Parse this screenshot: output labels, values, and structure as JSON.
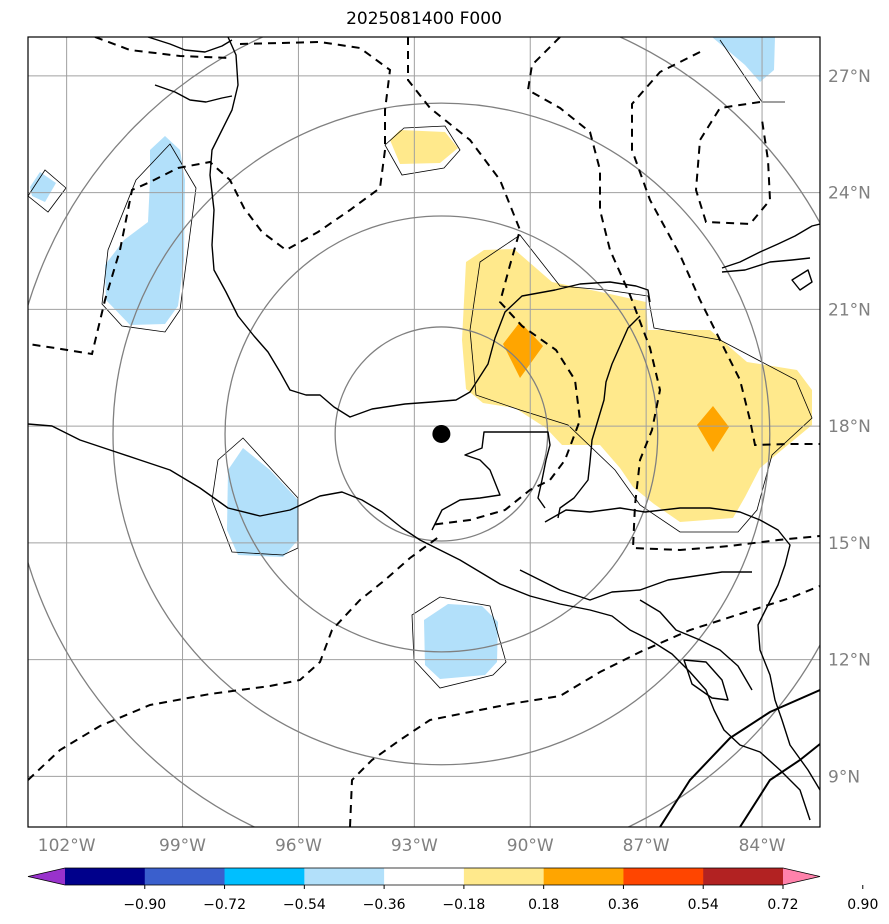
{
  "title": "2025081400 F000",
  "map": {
    "lon_range": [
      -103.0,
      -82.5
    ],
    "lat_range": [
      7.7,
      28.0
    ],
    "lon_ticks": [
      {
        "value": -102,
        "label": "102°W"
      },
      {
        "value": -99,
        "label": "99°W"
      },
      {
        "value": -96,
        "label": "96°W"
      },
      {
        "value": -93,
        "label": "93°W"
      },
      {
        "value": -90,
        "label": "90°W"
      },
      {
        "value": -87,
        "label": "87°W"
      },
      {
        "value": -84,
        "label": "84°W"
      }
    ],
    "lat_ticks": [
      {
        "value": 27,
        "label": "27°N"
      },
      {
        "value": 24,
        "label": "24°N"
      },
      {
        "value": 21,
        "label": "21°N"
      },
      {
        "value": 18,
        "label": "18°N"
      },
      {
        "value": 15,
        "label": "15°N"
      },
      {
        "value": 12,
        "label": "12°N"
      },
      {
        "value": 9,
        "label": "9°N"
      }
    ],
    "storm_center": {
      "lon": -92.3,
      "lat": 17.8
    },
    "range_rings_deg": [
      2.75,
      5.6,
      8.5,
      11.2
    ]
  },
  "colorbar": {
    "colors": [
      "#9932cc",
      "#00008b",
      "#3a5fcd",
      "#00bfff",
      "#b2e0fa",
      "#ffffff",
      "#ffe98c",
      "#ffa500",
      "#ff4500",
      "#b22222",
      "#ff82ab"
    ],
    "ticks": [
      "−0.90",
      "−0.72",
      "−0.54",
      "−0.36",
      "−0.18",
      "0.18",
      "0.36",
      "0.54",
      "0.72",
      "0.90"
    ]
  },
  "fill_colors": {
    "light_blue": "#b2e0fa",
    "light_yellow": "#ffe98c",
    "orange": "#ffa500"
  }
}
